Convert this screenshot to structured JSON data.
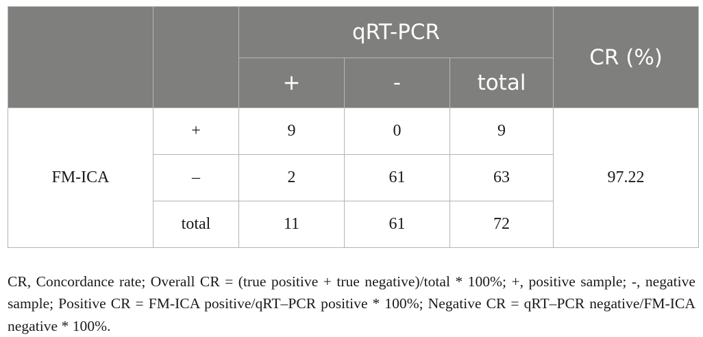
{
  "table": {
    "header": {
      "group_label": "qRT-PCR",
      "cr_label": "CR (%)",
      "sub_labels": [
        "+",
        "-",
        "total"
      ]
    },
    "row_group_label": "FM-ICA",
    "rows": [
      {
        "label": "+",
        "values": [
          "9",
          "0",
          "9"
        ]
      },
      {
        "label": "–",
        "values": [
          "2",
          "61",
          "63"
        ]
      },
      {
        "label": "total",
        "values": [
          "11",
          "61",
          "72"
        ]
      }
    ],
    "cr_value": "97.22"
  },
  "footnote": "CR, Concordance rate; Overall CR = (true positive + true negative)/total * 100%; +, positive sample; -, negative sample; Positive CR = FM-ICA positive/qRT–PCR positive * 100%; Negative CR = qRT–PCR negative/FM-ICA negative * 100%."
}
